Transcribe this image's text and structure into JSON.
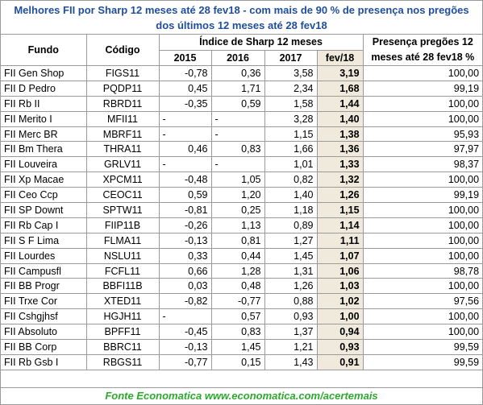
{
  "title": "Melhores FII por Sharp 12 meses até 28 fev18 - com mais de 90 % de presença nos pregões dos últimos 12 meses até 28 fev18",
  "table": {
    "headers": {
      "fundo": "Fundo",
      "codigo": "Código",
      "group": "Índice de Sharp 12 meses",
      "years": [
        "2015",
        "2016",
        "2017",
        "fev/18"
      ],
      "presenca": "Presença pregões 12 meses até 28 fev18 %"
    },
    "rows": [
      [
        "FII Gen Shop",
        "FIGS11",
        "-0,78",
        "0,36",
        "3,58",
        "3,19",
        "100,00"
      ],
      [
        "FII D Pedro",
        "PQDP11",
        "0,45",
        "1,71",
        "2,34",
        "1,68",
        "99,19"
      ],
      [
        "FII Rb II",
        "RBRD11",
        "-0,35",
        "0,59",
        "1,58",
        "1,44",
        "100,00"
      ],
      [
        "FII Merito I",
        "MFII11",
        "-",
        "-",
        "3,28",
        "1,40",
        "100,00"
      ],
      [
        "FII Merc BR",
        "MBRF11",
        "-",
        "-",
        "1,15",
        "1,38",
        "95,93"
      ],
      [
        "FII Bm Thera",
        "THRA11",
        "0,46",
        "0,83",
        "1,66",
        "1,36",
        "97,97"
      ],
      [
        "FII Louveira",
        "GRLV11",
        "-",
        "-",
        "1,01",
        "1,33",
        "98,37"
      ],
      [
        "FII Xp Macae",
        "XPCM11",
        "-0,48",
        "1,05",
        "0,82",
        "1,32",
        "100,00"
      ],
      [
        "FII Ceo Ccp",
        "CEOC11",
        "0,59",
        "1,20",
        "1,40",
        "1,26",
        "99,19"
      ],
      [
        "FII SP Downt",
        "SPTW11",
        "-0,81",
        "0,25",
        "1,18",
        "1,15",
        "100,00"
      ],
      [
        "FII Rb Cap I",
        "FIIP11B",
        "-0,26",
        "1,13",
        "0,89",
        "1,14",
        "100,00"
      ],
      [
        "FII S F Lima",
        "FLMA11",
        "-0,13",
        "0,81",
        "1,27",
        "1,11",
        "100,00"
      ],
      [
        "FII Lourdes",
        "NSLU11",
        "0,33",
        "0,44",
        "1,45",
        "1,07",
        "100,00"
      ],
      [
        "FII Campusfl",
        "FCFL11",
        "0,66",
        "1,28",
        "1,31",
        "1,06",
        "98,78"
      ],
      [
        "FII BB Progr",
        "BBFI11B",
        "0,03",
        "0,48",
        "1,26",
        "1,03",
        "100,00"
      ],
      [
        "FII Trxe Cor",
        "XTED11",
        "-0,82",
        "-0,77",
        "0,88",
        "1,02",
        "97,56"
      ],
      [
        "FII Cshgjhsf",
        "HGJH11",
        "-",
        "0,57",
        "0,93",
        "1,00",
        "100,00"
      ],
      [
        "FII Absoluto",
        "BPFF11",
        "-0,45",
        "0,83",
        "1,37",
        "0,94",
        "100,00"
      ],
      [
        "FII BB Corp",
        "BBRC11",
        "-0,13",
        "1,45",
        "1,21",
        "0,93",
        "99,59"
      ],
      [
        "FII Rb Gsb I",
        "RBGS11",
        "-0,77",
        "0,15",
        "1,43",
        "0,91",
        "99,59"
      ]
    ]
  },
  "footer": "Fonte Economatica www.economatica.com/acertemais"
}
